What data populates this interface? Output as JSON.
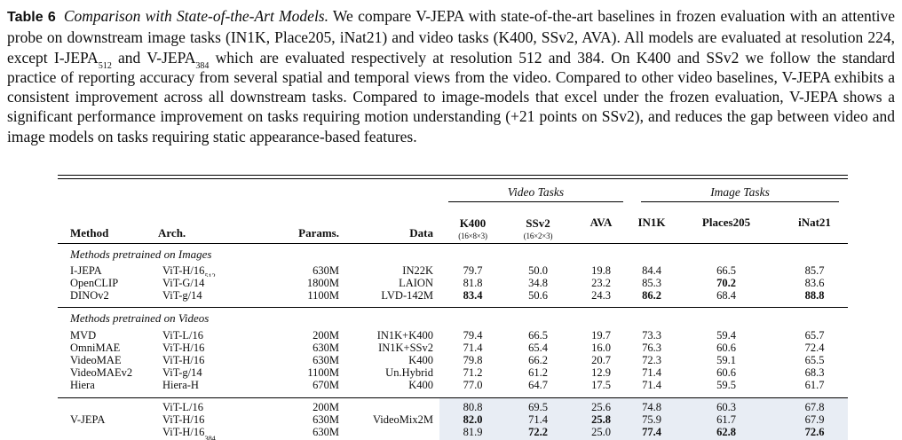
{
  "caption": {
    "label": "Table 6",
    "title": "Comparison with State-of-the-Art Models.",
    "body": [
      {
        "t": " We compare V-JEPA with state-of-the-art baselines in frozen evaluation with an attentive probe on downstream image tasks (IN1K, Place205, iNat21) and video tasks (K400, SSv2, AVA). All models are evaluated at resolution 224, except I-JEPA"
      },
      {
        "sub": "512"
      },
      {
        "t": " and V-JEPA"
      },
      {
        "sub": "384"
      },
      {
        "t": " which are evaluated respectively at resolution 512 and 384. On K400 and SSv2 we follow the standard practice of reporting accuracy from several spatial and temporal views from the video. Compared to other video baselines, V-JEPA exhibits a consistent improvement across all downstream tasks. Compared to image-models that excel under the frozen evaluation, V-JEPA shows a significant performance improvement on tasks requiring motion understanding (+21 points on SSv2), and reduces the gap between video and image models on tasks requiring static appearance-based features."
      }
    ]
  },
  "table": {
    "group_headers": [
      {
        "label": "Video Tasks",
        "span": [
          "K400",
          "SSv2",
          "AVA"
        ]
      },
      {
        "label": "Image Tasks",
        "span": [
          "IN1K",
          "Places205",
          "iNat21"
        ]
      }
    ],
    "columns": [
      {
        "key": "method",
        "label": "Method"
      },
      {
        "key": "arch",
        "label": "Arch."
      },
      {
        "key": "params",
        "label": "Params."
      },
      {
        "key": "data",
        "label": "Data"
      },
      {
        "key": "k400",
        "label": "K400",
        "sublabel": "(16×8×3)"
      },
      {
        "key": "ssv2",
        "label": "SSv2",
        "sublabel": "(16×2×3)"
      },
      {
        "key": "ava",
        "label": "AVA"
      },
      {
        "key": "in1k",
        "label": "IN1K"
      },
      {
        "key": "places205",
        "label": "Places205"
      },
      {
        "key": "inat21",
        "label": "iNat21"
      }
    ],
    "highlight_color": "#e8edf4",
    "sections": [
      {
        "header": "Methods pretrained on Images",
        "rows": [
          {
            "method": "I-JEPA",
            "arch": "ViT-H/16",
            "arch_sub": "512",
            "params": "630M",
            "data": "IN22K",
            "values": [
              {
                "v": "79.7"
              },
              {
                "v": "50.0"
              },
              {
                "v": "19.8"
              },
              {
                "v": "84.4"
              },
              {
                "v": "66.5"
              },
              {
                "v": "85.7"
              }
            ]
          },
          {
            "method": "OpenCLIP",
            "arch": "ViT-G/14",
            "params": "1800M",
            "data": "LAION",
            "values": [
              {
                "v": "81.8"
              },
              {
                "v": "34.8"
              },
              {
                "v": "23.2"
              },
              {
                "v": "85.3"
              },
              {
                "v": "70.2",
                "bold": true
              },
              {
                "v": "83.6"
              }
            ]
          },
          {
            "method": "DINOv2",
            "arch": "ViT-g/14",
            "params": "1100M",
            "data": "LVD-142M",
            "values": [
              {
                "v": "83.4",
                "bold": true
              },
              {
                "v": "50.6"
              },
              {
                "v": "24.3"
              },
              {
                "v": "86.2",
                "bold": true
              },
              {
                "v": "68.4"
              },
              {
                "v": "88.8",
                "bold": true
              }
            ]
          }
        ]
      },
      {
        "header": "Methods pretrained on Videos",
        "rows": [
          {
            "method": "MVD",
            "arch": "ViT-L/16",
            "params": "200M",
            "data": "IN1K+K400",
            "values": [
              {
                "v": "79.4"
              },
              {
                "v": "66.5"
              },
              {
                "v": "19.7"
              },
              {
                "v": "73.3"
              },
              {
                "v": "59.4"
              },
              {
                "v": "65.7"
              }
            ]
          },
          {
            "method": "OmniMAE",
            "arch": "ViT-H/16",
            "params": "630M",
            "data": "IN1K+SSv2",
            "values": [
              {
                "v": "71.4"
              },
              {
                "v": "65.4"
              },
              {
                "v": "16.0"
              },
              {
                "v": "76.3"
              },
              {
                "v": "60.6"
              },
              {
                "v": "72.4"
              }
            ]
          },
          {
            "method": "VideoMAE",
            "arch": "ViT-H/16",
            "params": "630M",
            "data": "K400",
            "values": [
              {
                "v": "79.8"
              },
              {
                "v": "66.2"
              },
              {
                "v": "20.7"
              },
              {
                "v": "72.3"
              },
              {
                "v": "59.1"
              },
              {
                "v": "65.5"
              }
            ]
          },
          {
            "method": "VideoMAEv2",
            "arch": "ViT-g/14",
            "params": "1100M",
            "data": "Un.Hybrid",
            "values": [
              {
                "v": "71.2"
              },
              {
                "v": "61.2"
              },
              {
                "v": "12.9"
              },
              {
                "v": "71.4"
              },
              {
                "v": "60.6"
              },
              {
                "v": "68.3"
              }
            ]
          },
          {
            "method": "Hiera",
            "arch": "Hiera-H",
            "params": "670M",
            "data": "K400",
            "values": [
              {
                "v": "77.0"
              },
              {
                "v": "64.7"
              },
              {
                "v": "17.5"
              },
              {
                "v": "71.4"
              },
              {
                "v": "59.5"
              },
              {
                "v": "61.7"
              }
            ]
          }
        ]
      },
      {
        "highlight": true,
        "rows": [
          {
            "method": "",
            "arch": "ViT-L/16",
            "params": "200M",
            "data": "",
            "values": [
              {
                "v": "80.8"
              },
              {
                "v": "69.5"
              },
              {
                "v": "25.6"
              },
              {
                "v": "74.8"
              },
              {
                "v": "60.3"
              },
              {
                "v": "67.8"
              }
            ]
          },
          {
            "method": "V-JEPA",
            "arch": "ViT-H/16",
            "params": "630M",
            "data": "VideoMix2M",
            "values": [
              {
                "v": "82.0",
                "bold": true
              },
              {
                "v": "71.4"
              },
              {
                "v": "25.8",
                "bold": true
              },
              {
                "v": "75.9"
              },
              {
                "v": "61.7"
              },
              {
                "v": "67.9"
              }
            ]
          },
          {
            "method": "",
            "arch": "ViT-H/16",
            "arch_sub": "384",
            "params": "630M",
            "data": "",
            "values": [
              {
                "v": "81.9"
              },
              {
                "v": "72.2",
                "bold": true
              },
              {
                "v": "25.0"
              },
              {
                "v": "77.4",
                "bold": true
              },
              {
                "v": "62.8",
                "bold": true
              },
              {
                "v": "72.6",
                "bold": true
              }
            ]
          }
        ]
      }
    ]
  }
}
